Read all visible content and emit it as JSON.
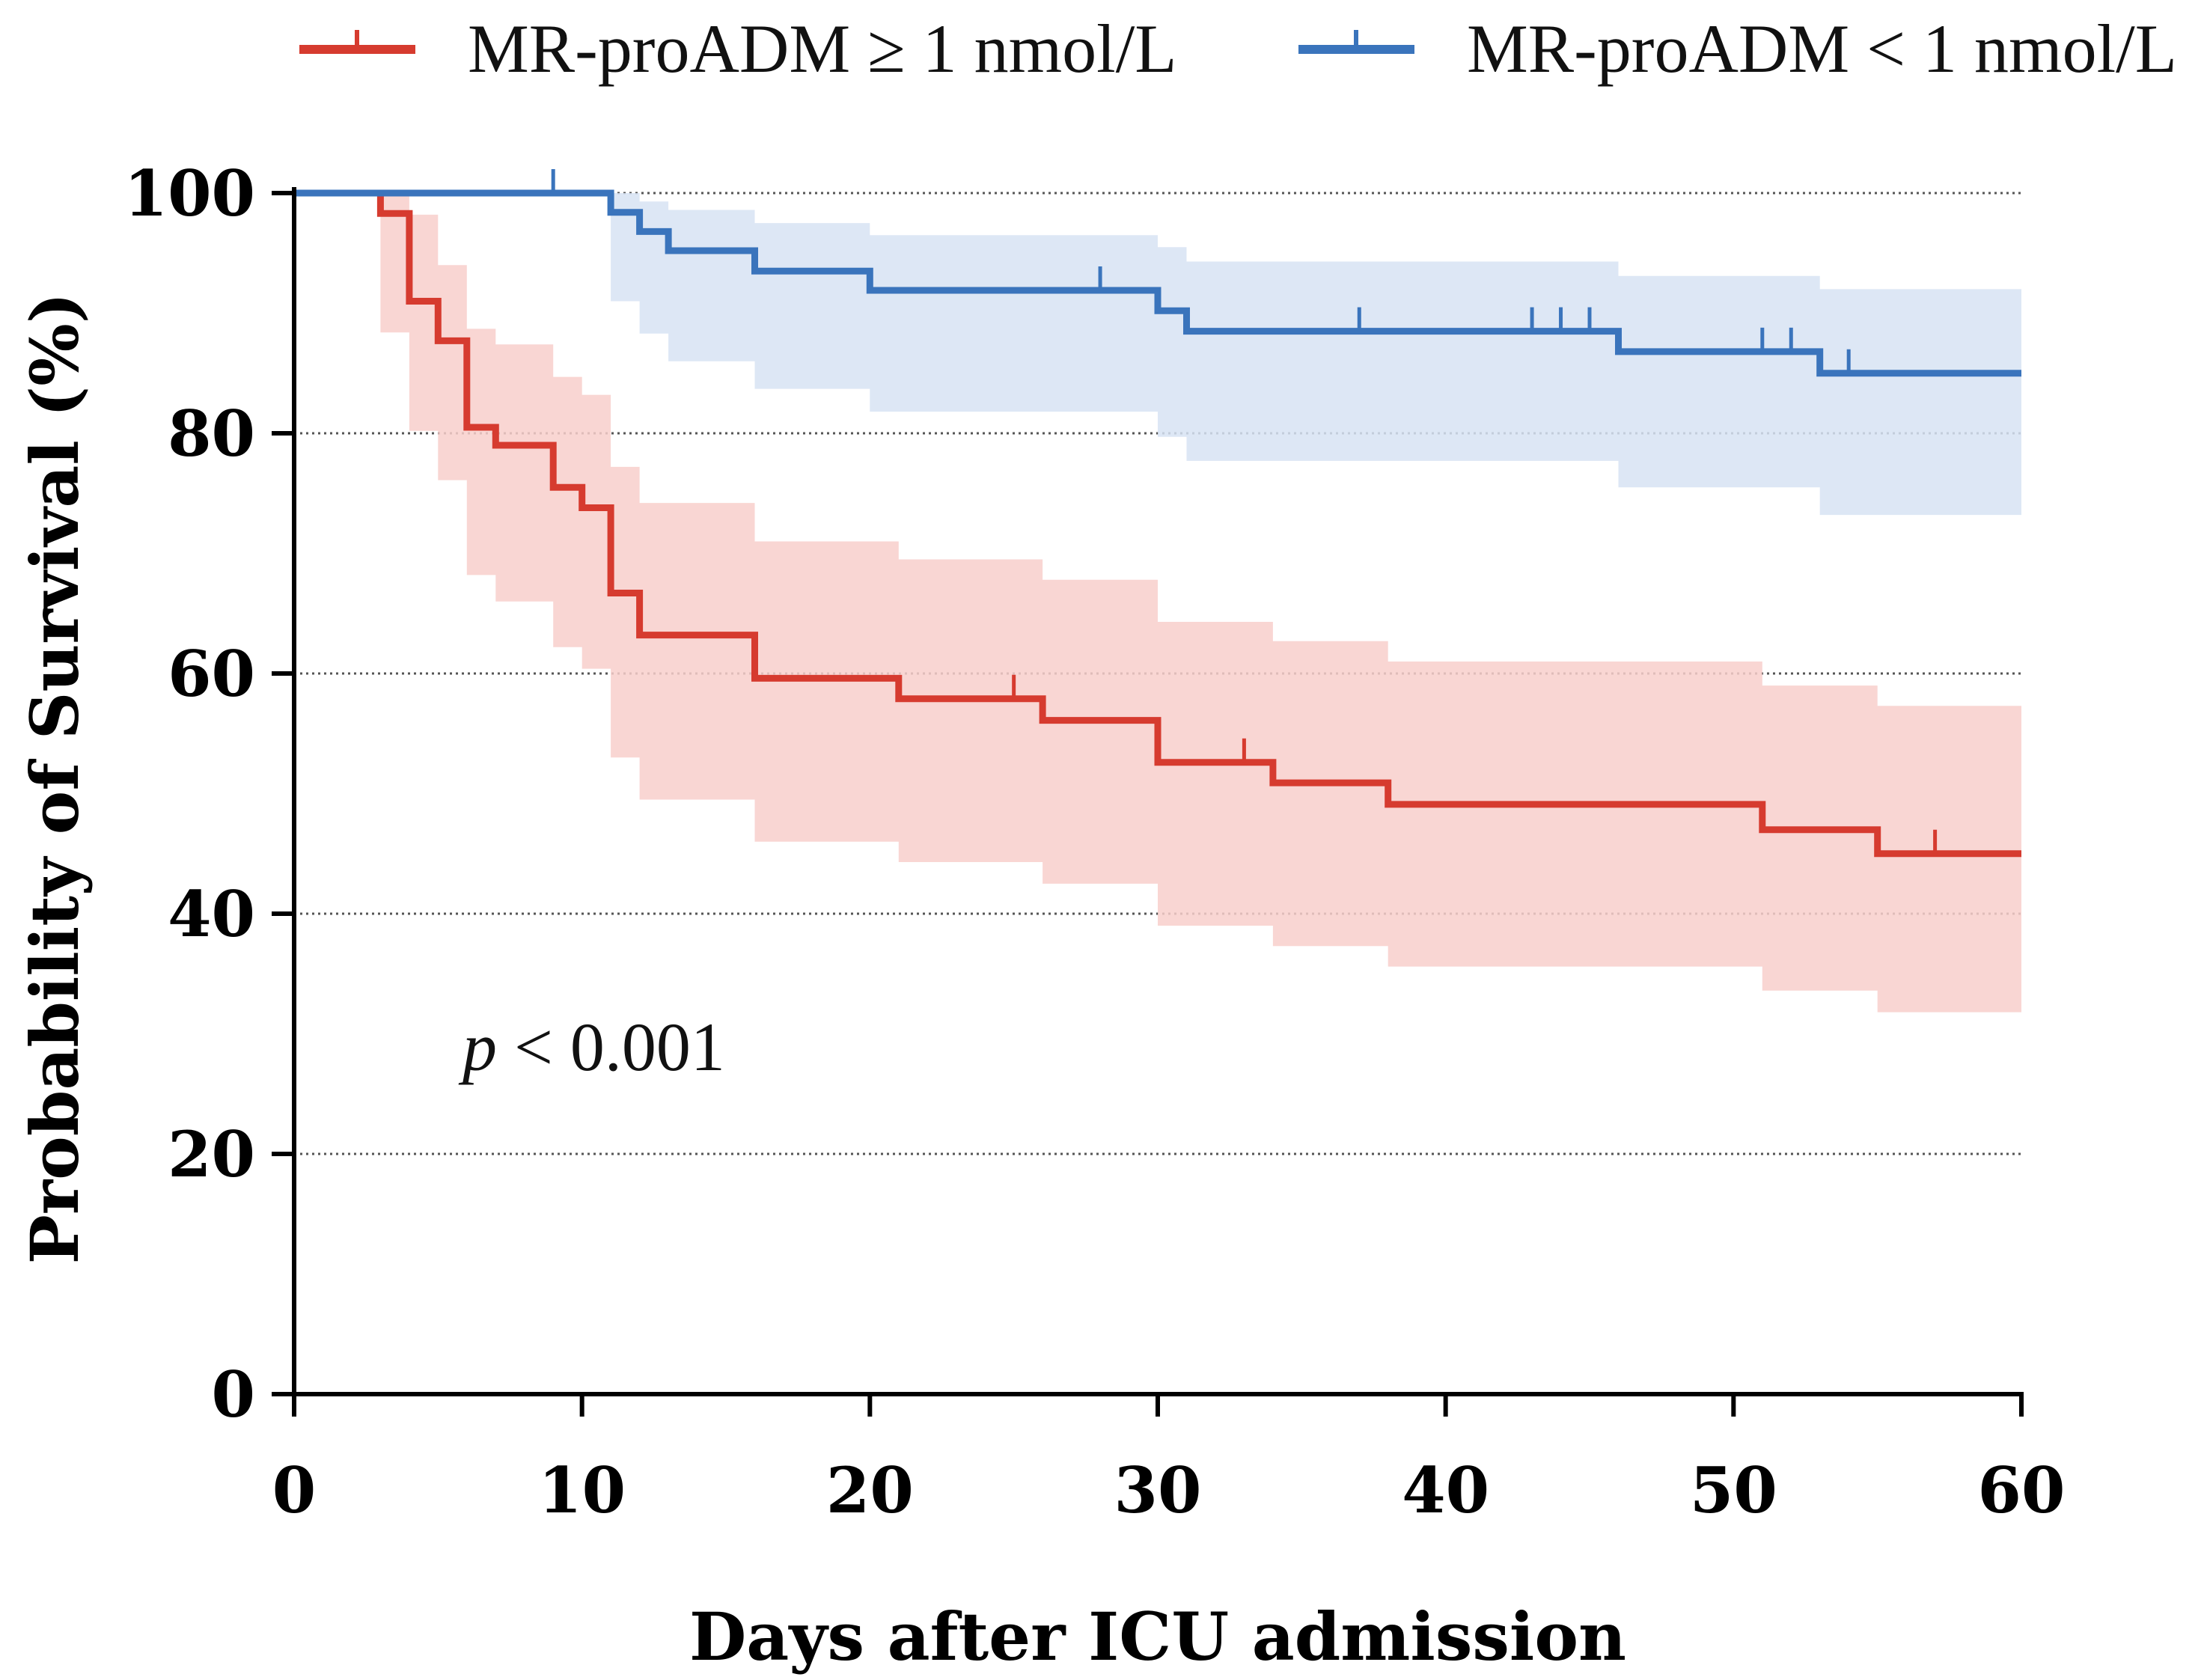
{
  "chart_data": {
    "type": "line",
    "subtype": "kaplan-meier-step",
    "title": "",
    "xlabel": "Days after ICU admission",
    "ylabel": "Probability of Survival (%)",
    "xlim": [
      0,
      60
    ],
    "ylim": [
      0,
      100
    ],
    "xticks": [
      "0",
      "10",
      "20",
      "30",
      "40",
      "50",
      "60"
    ],
    "yticks": [
      "0",
      "20",
      "40",
      "60",
      "80",
      "100"
    ],
    "grid": "horizontal-dotted",
    "legend_position": "top",
    "annotation": {
      "italic": "p",
      "rest": " < 0.001"
    },
    "series": [
      {
        "name": "MR-proADM ≥ 1 nmol/L",
        "color": "#d63b2f",
        "band_color": "#f8cfcb",
        "steps": [
          [
            0,
            100
          ],
          [
            3,
            98.3
          ],
          [
            4,
            91
          ],
          [
            5,
            87.7
          ],
          [
            6,
            80.5
          ],
          [
            7,
            79
          ],
          [
            9,
            75.5
          ],
          [
            10,
            73.8
          ],
          [
            11,
            66.7
          ],
          [
            12,
            63.2
          ],
          [
            16,
            59.6
          ],
          [
            21,
            57.9
          ],
          [
            26,
            56.1
          ],
          [
            30,
            52.6
          ],
          [
            34,
            50.9
          ],
          [
            38,
            49.1
          ],
          [
            51,
            47
          ],
          [
            55,
            45
          ],
          [
            60,
            45
          ]
        ],
        "ci_lower": [
          [
            0,
            100
          ],
          [
            3,
            88.4
          ],
          [
            4,
            80.2
          ],
          [
            5,
            76.1
          ],
          [
            6,
            68.2
          ],
          [
            7,
            66
          ],
          [
            9,
            62.2
          ],
          [
            10,
            60.4
          ],
          [
            11,
            53
          ],
          [
            12,
            49.5
          ],
          [
            16,
            46
          ],
          [
            21,
            44.3
          ],
          [
            26,
            42.5
          ],
          [
            30,
            39
          ],
          [
            34,
            37.3
          ],
          [
            38,
            35.6
          ],
          [
            51,
            33.6
          ],
          [
            55,
            31.8
          ],
          [
            60,
            31.8
          ]
        ],
        "ci_upper": [
          [
            0,
            100
          ],
          [
            3,
            100
          ],
          [
            4,
            98.2
          ],
          [
            5,
            94
          ],
          [
            6,
            88.7
          ],
          [
            7,
            87.4
          ],
          [
            9,
            84.7
          ],
          [
            10,
            83.2
          ],
          [
            11,
            77.2
          ],
          [
            12,
            74.2
          ],
          [
            16,
            71
          ],
          [
            21,
            69.5
          ],
          [
            26,
            67.8
          ],
          [
            30,
            64.3
          ],
          [
            34,
            62.7
          ],
          [
            38,
            61
          ],
          [
            51,
            59
          ],
          [
            55,
            57.3
          ],
          [
            60,
            57.3
          ]
        ],
        "censored": [
          [
            25,
            57.9
          ],
          [
            33,
            52.6
          ],
          [
            57,
            45
          ]
        ]
      },
      {
        "name": "MR-proADM < 1 nmol/L",
        "color": "#3a74bc",
        "band_color": "#d7e3f3",
        "steps": [
          [
            0,
            100
          ],
          [
            11,
            98.4
          ],
          [
            12,
            96.8
          ],
          [
            13,
            95.2
          ],
          [
            16,
            93.5
          ],
          [
            20,
            91.9
          ],
          [
            30,
            90.2
          ],
          [
            31,
            88.5
          ],
          [
            46,
            86.8
          ],
          [
            53,
            85
          ],
          [
            60,
            85
          ]
        ],
        "ci_lower": [
          [
            0,
            100
          ],
          [
            11,
            91
          ],
          [
            12,
            88.3
          ],
          [
            13,
            86
          ],
          [
            16,
            83.7
          ],
          [
            20,
            81.8
          ],
          [
            30,
            79.7
          ],
          [
            31,
            77.7
          ],
          [
            46,
            75.5
          ],
          [
            53,
            73.2
          ],
          [
            60,
            73.2
          ]
        ],
        "ci_upper": [
          [
            0,
            100
          ],
          [
            11,
            100
          ],
          [
            12,
            99.3
          ],
          [
            13,
            98.6
          ],
          [
            16,
            97.5
          ],
          [
            20,
            96.5
          ],
          [
            30,
            95.5
          ],
          [
            31,
            94.3
          ],
          [
            46,
            93.1
          ],
          [
            53,
            92
          ],
          [
            60,
            92
          ]
        ],
        "censored": [
          [
            9,
            100
          ],
          [
            28,
            91.9
          ],
          [
            37,
            88.5
          ],
          [
            43,
            88.5
          ],
          [
            44,
            88.5
          ],
          [
            45,
            88.5
          ],
          [
            51,
            86.8
          ],
          [
            52,
            86.8
          ],
          [
            54,
            85
          ]
        ]
      }
    ]
  }
}
